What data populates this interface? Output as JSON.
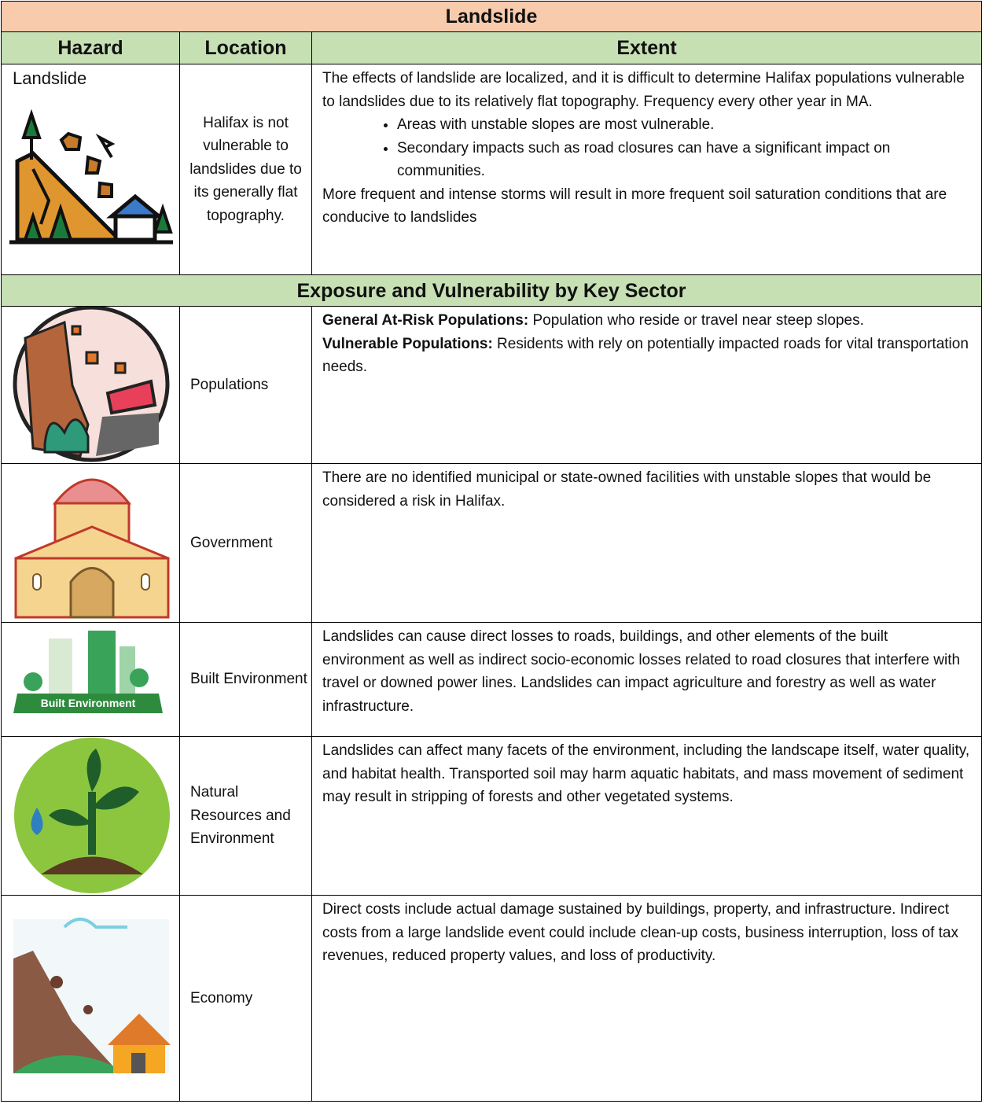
{
  "title": "Landslide",
  "header": {
    "hazard": "Hazard",
    "location": "Location",
    "extent": "Extent"
  },
  "hazard": {
    "name": "Landslide",
    "location": "Halifax is not vulnerable to landslides due to its generally flat topography.",
    "extent": {
      "intro": "The effects of landslide are localized, and it is difficult to determine Halifax populations vulnerable to landslides due to its relatively flat topography.  Frequency every other year in MA.",
      "bullets": [
        "Areas with unstable slopes are most vulnerable.",
        "Secondary impacts such as road closures can have a significant impact on communities."
      ],
      "closing": "More frequent and intense storms will result in more frequent soil saturation conditions that are conducive to landslides"
    }
  },
  "section_title": "Exposure and Vulnerability by Key Sector",
  "sectors": [
    {
      "name": "Populations",
      "items": [
        {
          "label": "General At-Risk Populations:",
          "text": " Population who reside or travel near steep slopes."
        },
        {
          "label": "Vulnerable Populations:",
          "text": " Residents with rely on potentially impacted roads for vital transportation needs."
        }
      ]
    },
    {
      "name": "Government",
      "text": "There are no identified municipal or state-owned facilities with unstable slopes that would be considered a risk in Halifax."
    },
    {
      "name": "Built Environment",
      "icon_text": "Built Environment",
      "text": "Landslides can cause direct losses to roads, buildings, and other elements of the built environment as well as indirect socio-economic losses related to road closures that interfere with travel or downed power lines.  Landslides can impact agriculture and forestry as well as water infrastructure."
    },
    {
      "name": "Natural Resources and Environment",
      "text": "Landslides can affect many facets of the environment, including the landscape itself, water quality, and habitat health.  Transported soil may harm aquatic habitats, and mass movement of sediment may result in stripping of forests and other vegetated systems."
    },
    {
      "name": "Economy",
      "text": "Direct costs include actual damage sustained by buildings, property, and infrastructure.  Indirect costs from a large landslide event could include clean-up costs, business interruption, loss of tax revenues, reduced property values, and loss of productivity."
    }
  ]
}
